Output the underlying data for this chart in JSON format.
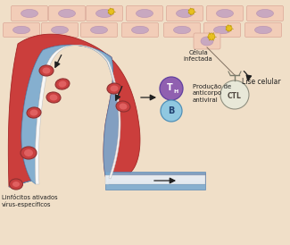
{
  "bg_color": "#f0dfc8",
  "tissue_bg": "#f2cdb8",
  "tissue_border": "#dba898",
  "cell_fill": "#c8a8c0",
  "cell_nucleus": "#b890b0",
  "virus_color": "#e8c020",
  "red_color": "#c83030",
  "red_edge": "#a02020",
  "blue_color": "#7aaad0",
  "blue_edge": "#5080b0",
  "white_color": "#f8f8f8",
  "rbc_fill": "#c84040",
  "rbc_edge": "#903030",
  "rbc_inner": "#e06060",
  "ctl_fill": "#e8e8d8",
  "ctl_edge": "#909080",
  "th_fill": "#9060b0",
  "th_edge": "#6040a0",
  "b_fill": "#90c8e0",
  "b_edge": "#5090b8",
  "arrow_color": "#202020",
  "text_color": "#202020",
  "label_celula": "Célula\ninfectada",
  "label_lise": "Lise celular",
  "label_ctl": "CTL",
  "label_producao": "Produção de\nanticorpo\nantiviral",
  "label_linfocitos": "Linfócitos ativados\nvírus-específicos"
}
